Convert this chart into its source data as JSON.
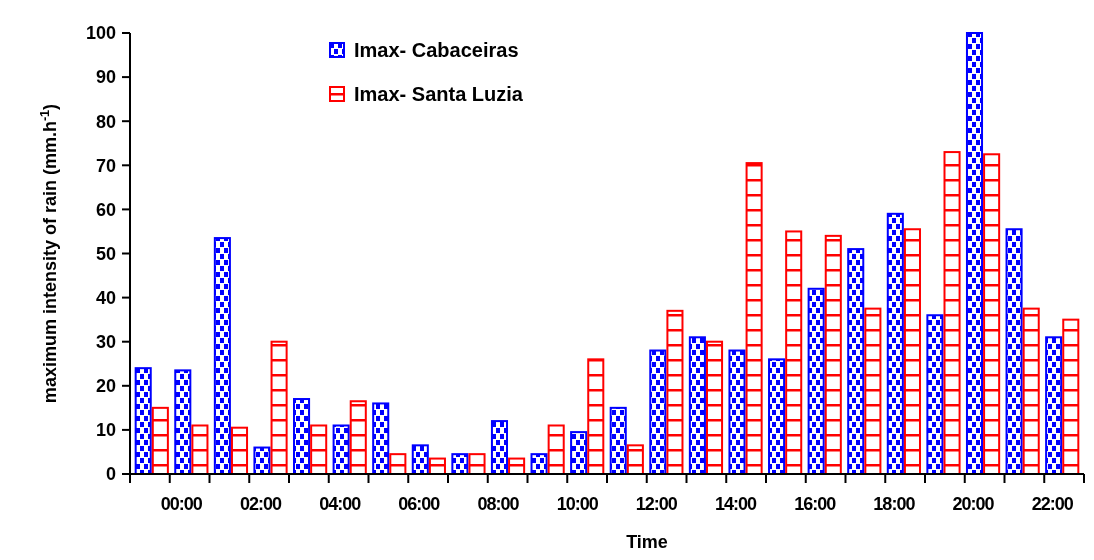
{
  "chart_data": {
    "type": "bar",
    "xlabel": "Time",
    "ylabel": "maximum intensity of rain (mm.h$^{-1}$)",
    "categories": [
      null,
      "00:00",
      null,
      "02:00",
      null,
      "04:00",
      null,
      "06:00",
      null,
      "08:00",
      null,
      "10:00",
      null,
      "12:00",
      null,
      "14:00",
      null,
      "16:00",
      null,
      "18:00",
      null,
      "20:00",
      null,
      "22:00"
    ],
    "series": [
      {
        "name": "Imax- Cabaceiras",
        "color": "#0000ff",
        "values": [
          24,
          23.5,
          53.5,
          6,
          17,
          11,
          16,
          6.5,
          4.5,
          12,
          4.5,
          9.5,
          15,
          28,
          31,
          28,
          26,
          42,
          51,
          59,
          36,
          100,
          55.5,
          31
        ]
      },
      {
        "name": "Imax- Santa Luzia",
        "color": "#ff0000",
        "values": [
          15,
          11,
          10.5,
          30,
          11,
          16.5,
          4.5,
          3.5,
          4.5,
          3.5,
          11,
          26,
          6.5,
          37,
          30,
          70.5,
          55,
          54,
          37.5,
          55.5,
          73,
          72.5,
          37.5,
          35
        ]
      }
    ],
    "ylim": [
      0,
      100
    ],
    "yticks": [
      0,
      10,
      20,
      30,
      40,
      50,
      60,
      70,
      80,
      90,
      100
    ],
    "grid": false,
    "legend": "top left"
  }
}
